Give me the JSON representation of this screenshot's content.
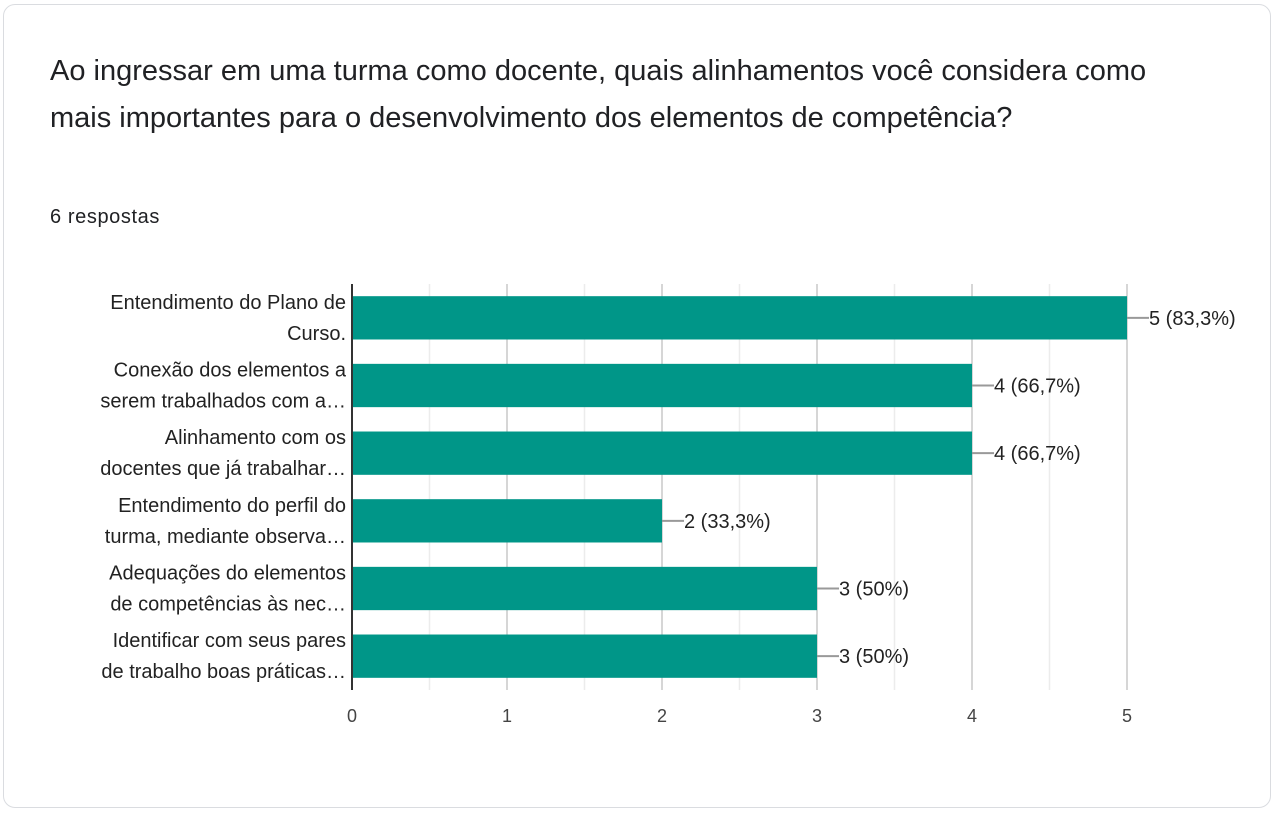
{
  "question": {
    "title": "Ao ingressar em uma turma como docente, quais alinhamentos você considera como mais importantes para o desenvolvimento dos elementos de competência?",
    "responses": "6 respostas"
  },
  "colors": {
    "bar": "#009688",
    "grid": "#e0e0e0",
    "axis": "#333333",
    "leader": "#999999"
  },
  "chart_data": {
    "type": "bar",
    "orientation": "horizontal",
    "categories": [
      [
        "Entendimento do Plano de",
        "Curso."
      ],
      [
        "Conexão dos elementos a",
        "serem trabalhados com a…"
      ],
      [
        "Alinhamento com os",
        "docentes que já trabalhar…"
      ],
      [
        "Entendimento do perfil do",
        "turma, mediante observa…"
      ],
      [
        "Adequações do elementos",
        "de competências às nec…"
      ],
      [
        "Identificar com seus pares",
        "de trabalho boas práticas…"
      ]
    ],
    "values": [
      5,
      4,
      4,
      2,
      3,
      3
    ],
    "data_labels": [
      "5 (83,3%)",
      "4 (66,7%)",
      "4 (66,7%)",
      "2 (33,3%)",
      "3 (50%)",
      "3 (50%)"
    ],
    "xlim": [
      0,
      5
    ],
    "ticks": [
      0,
      1,
      2,
      3,
      4,
      5
    ],
    "grid": true
  }
}
